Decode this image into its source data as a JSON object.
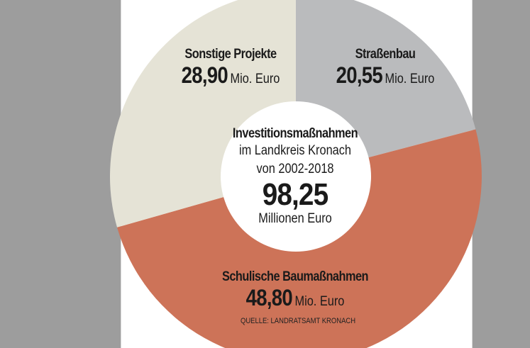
{
  "chart_data": {
    "type": "pie",
    "center": {
      "title": "Investitionsmaßnahmen",
      "line1": "im Landkreis Kronach",
      "line2": "von 2002-2018",
      "total": "98,25",
      "total_unit": "Millionen Euro"
    },
    "unit": "Mio. Euro",
    "slices": [
      {
        "label": "Straßenbau",
        "value": 20.55,
        "display": "20,55",
        "color": "#babbbd"
      },
      {
        "label": "Schulische Baumaßnahmen",
        "value": 48.8,
        "display": "48,80",
        "color": "#cd7358"
      },
      {
        "label": "Sonstige Projekte",
        "value": 28.9,
        "display": "28,90",
        "color": "#e5e3d6"
      }
    ],
    "source": "QUELLE: LANDRATSAMT KRONACH"
  }
}
